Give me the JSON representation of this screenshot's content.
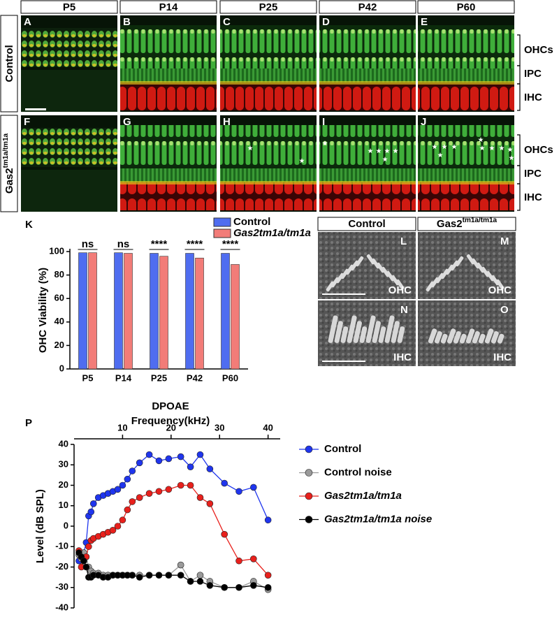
{
  "figure": {
    "columns": [
      "P5",
      "P14",
      "P25",
      "P42",
      "P60"
    ],
    "rows": [
      {
        "text": "Control"
      },
      {
        "text": "Gas2",
        "sup": "tm1a/tm1a"
      }
    ],
    "panel_letters": [
      "A",
      "B",
      "C",
      "D",
      "E",
      "F",
      "G",
      "H",
      "I",
      "J"
    ],
    "region_labels": [
      [
        "OHCs",
        "IPC",
        "IHC"
      ],
      [
        "OHCs",
        "IPC",
        "IHC"
      ]
    ],
    "sem": {
      "columns": [
        {
          "text": "Control"
        },
        {
          "text": "Gas2",
          "sup": "tm1a/tm1a"
        }
      ],
      "letters": [
        "L",
        "M",
        "N",
        "O"
      ],
      "labels": [
        "OHC",
        "OHC",
        "IHC",
        "IHC"
      ]
    },
    "letter_K": "K",
    "letter_P": "P"
  },
  "chart_data": [
    {
      "type": "bar",
      "ylabel": "OHC Viability (%)",
      "categories": [
        "P5",
        "P14",
        "P25",
        "P42",
        "P60"
      ],
      "series": [
        {
          "name": "Control",
          "color": "#4f6df0",
          "values": [
            99,
            99,
            98.5,
            98.5,
            98.5
          ]
        },
        {
          "name": "Gas2tm1a/tm1a",
          "color": "#f27c78",
          "values": [
            99,
            98.5,
            96,
            94.5,
            89
          ]
        }
      ],
      "annotations": [
        "ns",
        "ns",
        "****",
        "****",
        "****"
      ],
      "ylim": [
        0,
        100
      ],
      "yticks": [
        0,
        20,
        40,
        60,
        80,
        100
      ],
      "grid": false
    },
    {
      "type": "line",
      "title": "DPOAE",
      "xlabel": "Frequency(kHz)",
      "ylabel": "Level (dB SPL)",
      "x": [
        1,
        1.5,
        2,
        2.5,
        3,
        3.5,
        4,
        5,
        6,
        7,
        8,
        9,
        10,
        11,
        12,
        13.5,
        15.5,
        17.5,
        19.5,
        22,
        24,
        26,
        28,
        31,
        34,
        37,
        40
      ],
      "series": [
        {
          "name": "Control",
          "color": "#1f35ee",
          "values": [
            -17,
            -15,
            -13,
            -8,
            5,
            7,
            11,
            14,
            15,
            16,
            17,
            18,
            20,
            23,
            27,
            31,
            35,
            32,
            33,
            34,
            29,
            35,
            28,
            21,
            17,
            19,
            3
          ]
        },
        {
          "name": "Control noise",
          "color": "#9a9a9a",
          "values": [
            -14,
            -16,
            -13,
            -15,
            -20,
            -22,
            -23,
            -23,
            -24,
            -24,
            -24,
            -24,
            -24,
            -24,
            -24,
            -24,
            -24,
            -24,
            -24,
            -19,
            -27,
            -24,
            -27,
            -30,
            -30,
            -27,
            -31
          ]
        },
        {
          "name": "Gas2tm1a/tm1a",
          "color": "#e8201c",
          "values": [
            -12,
            -20,
            -17,
            -15,
            -10,
            -7,
            -6,
            -5,
            -4,
            -3,
            -2,
            0,
            3,
            8,
            12,
            14,
            16,
            17,
            18,
            20,
            20,
            14,
            11,
            -4,
            -17,
            -16,
            -24
          ]
        },
        {
          "name": "Gas2tm1a/tm1a noise",
          "color": "#000000",
          "values": [
            -13,
            -15,
            -17,
            -20,
            -25,
            -25,
            -24,
            -24,
            -25,
            -25,
            -24,
            -24,
            -24,
            -24,
            -24,
            -25,
            -24,
            -24,
            -24,
            -24,
            -27,
            -27,
            -29,
            -30,
            -30,
            -29,
            -30
          ]
        }
      ],
      "xlim": [
        0,
        42.5
      ],
      "xticks": [
        10,
        20,
        30,
        40
      ],
      "ylim": [
        -40,
        40
      ],
      "yticks": [
        -40,
        -30,
        -20,
        -10,
        0,
        10,
        20,
        30,
        40
      ],
      "grid": false
    }
  ]
}
